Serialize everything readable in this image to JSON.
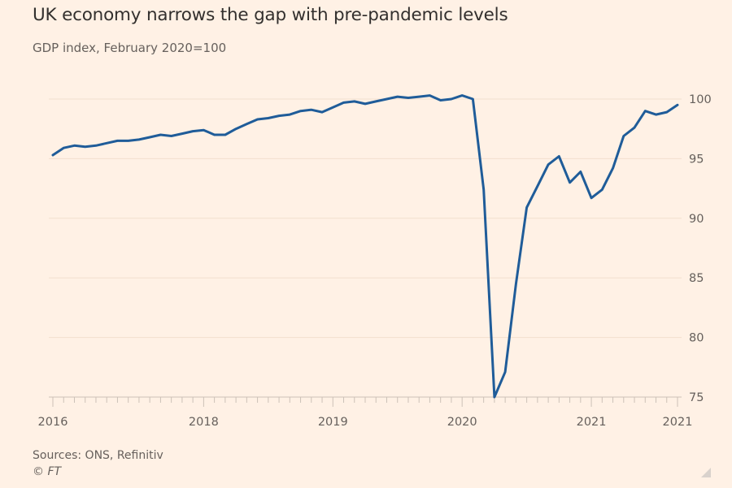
{
  "header": {
    "title": "UK economy narrows the gap with pre-pandemic levels",
    "subtitle": "GDP index, February 2020=100"
  },
  "footer": {
    "source": "Sources: ONS, Refinitiv",
    "copyright": "© FT"
  },
  "colors": {
    "background": "#fff1e5",
    "line": "#1f5c99",
    "grid": "#f2dfce",
    "axis": "#ccc1b7",
    "text": "#66605c"
  },
  "chart_data": {
    "type": "line",
    "title": "UK economy narrows the gap with pre-pandemic levels",
    "subtitle": "GDP index, February 2020=100",
    "xlabel": "",
    "ylabel": "",
    "ylim": [
      75,
      100
    ],
    "yticks": [
      100,
      95,
      90,
      85,
      80,
      75
    ],
    "y_axis_side": "right",
    "grid": true,
    "x_tick_labels": [
      {
        "label": "2016",
        "index": 0
      },
      {
        "label": "2018",
        "index": 14
      },
      {
        "label": "2019",
        "index": 26
      },
      {
        "label": "2020",
        "index": 38
      },
      {
        "label": "2021",
        "index": 50
      },
      {
        "label": "2021",
        "index": 58
      }
    ],
    "x_minor_ticks": "monthly",
    "series": [
      {
        "name": "UK GDP index",
        "values": [
          95.3,
          95.9,
          96.1,
          96.0,
          96.1,
          96.3,
          96.5,
          96.5,
          96.6,
          96.8,
          97.0,
          96.9,
          97.1,
          97.3,
          97.4,
          97.0,
          97.0,
          97.5,
          97.9,
          98.3,
          98.4,
          98.6,
          98.7,
          99.0,
          99.1,
          98.9,
          99.3,
          99.7,
          99.8,
          99.6,
          99.8,
          100.0,
          100.2,
          100.1,
          100.2,
          100.3,
          99.9,
          100.0,
          100.3,
          100.0,
          92.4,
          75.0,
          77.1,
          84.5,
          90.9,
          92.7,
          94.5,
          95.2,
          93.0,
          93.9,
          91.7,
          92.4,
          94.2,
          96.9,
          97.6,
          99.0,
          98.7,
          98.9,
          99.5
        ]
      }
    ],
    "legend": "none"
  }
}
